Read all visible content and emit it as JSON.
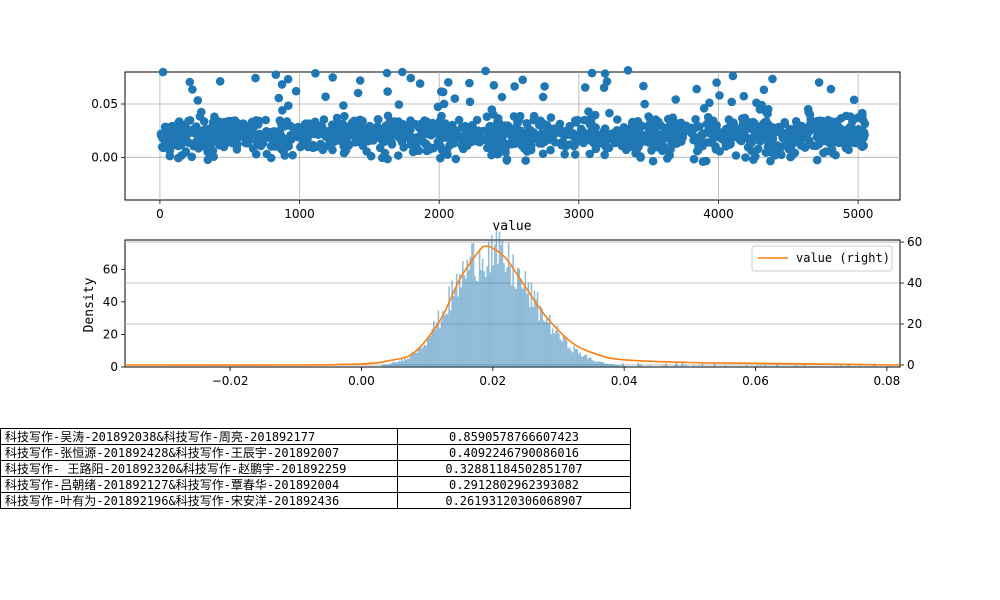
{
  "chart_data": [
    {
      "type": "scatter",
      "title": "",
      "xlabel": "",
      "ylabel": "",
      "xlim": [
        -250,
        5300
      ],
      "ylim": [
        -0.04,
        0.08
      ],
      "xticks": [
        "0",
        "1000",
        "2000",
        "3000",
        "4000",
        "5000"
      ],
      "yticks": [
        "0.00",
        "0.05"
      ],
      "grid": true,
      "n_points": 5050,
      "y_center": 0.02,
      "y_spread": 0.01,
      "color": "#1f77b4"
    },
    {
      "type": "bar",
      "title": "value",
      "ylabel": "Density",
      "xlim": [
        -0.036,
        0.082
      ],
      "ylim_left": [
        0,
        78
      ],
      "ylim_right": [
        -1,
        61
      ],
      "xticks": [
        "−0.02",
        "0.00",
        "0.02",
        "0.04",
        "0.06",
        "0.08"
      ],
      "yticks_left": [
        "0",
        "20",
        "40",
        "60"
      ],
      "yticks_right": [
        "0",
        "20",
        "40",
        "60"
      ],
      "hist_color": "#1f77b4",
      "hist_peak_density": 72,
      "hist_center": 0.019,
      "hist_std": 0.0055,
      "series": [
        {
          "name": "value (right)",
          "color": "#ff7f0e",
          "x": [
            -0.036,
            -0.01,
            0.0,
            0.004,
            0.008,
            0.012,
            0.015,
            0.018,
            0.019,
            0.02,
            0.022,
            0.025,
            0.028,
            0.032,
            0.036,
            0.04,
            0.05,
            0.06,
            0.07,
            0.082
          ],
          "values": [
            0,
            0,
            0.5,
            2,
            6,
            22,
            42,
            56,
            58,
            57,
            52,
            38,
            24,
            11,
            5,
            2.5,
            1.2,
            0.8,
            0.4,
            0
          ]
        }
      ],
      "legend": "top-right",
      "grid": "y"
    }
  ],
  "table": {
    "rows": [
      [
        "科技写作-吴涛-201892038&科技写作-周亮-201892177",
        "0.8590578766607423"
      ],
      [
        "科技写作-张恒源-201892428&科技写作-王辰宇-201892007",
        "0.4092246790086016"
      ],
      [
        "科技写作- 王路阳-201892320&科技写作-赵鹏宇-201892259",
        "0.32881184502851707"
      ],
      [
        "科技写作-吕朝绪-201892127&科技写作-覃春华-201892004",
        "0.2912802962393082"
      ],
      [
        "科技写作-叶有为-201892196&科技写作-宋安洋-201892436",
        "0.26193120306068907"
      ]
    ]
  }
}
